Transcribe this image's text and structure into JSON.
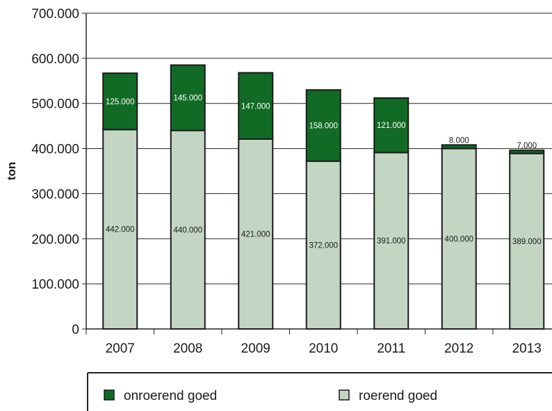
{
  "chart_data": {
    "type": "bar",
    "stacked": true,
    "categories": [
      "2007",
      "2008",
      "2009",
      "2010",
      "2011",
      "2012",
      "2013"
    ],
    "series": [
      {
        "name": "roerend goed",
        "color": "#c3d6c3",
        "values": [
          442000,
          440000,
          421000,
          372000,
          391000,
          400000,
          389000
        ],
        "labels": [
          "442.000",
          "440.000",
          "421.000",
          "372.000",
          "391.000",
          "400.000",
          "389.000"
        ],
        "label_color": "#1a1a1a"
      },
      {
        "name": "onroerend goed",
        "color": "#116b25",
        "values": [
          125000,
          145000,
          147000,
          158000,
          121000,
          8000,
          7000
        ],
        "labels": [
          "125.000",
          "145.000",
          "147.000",
          "158.000",
          "121.000",
          "8.000",
          "7.000"
        ],
        "label_color": "#ffffff"
      }
    ],
    "title": "",
    "xlabel": "",
    "ylabel": "ton",
    "ylim": [
      0,
      700000
    ],
    "yticks": [
      0,
      100000,
      200000,
      300000,
      400000,
      500000,
      600000,
      700000
    ],
    "ytick_labels": [
      "0",
      "100.000",
      "200.000",
      "300.000",
      "400.000",
      "500.000",
      "600.000",
      "700.000"
    ],
    "grid": true,
    "legend_position": "bottom"
  }
}
